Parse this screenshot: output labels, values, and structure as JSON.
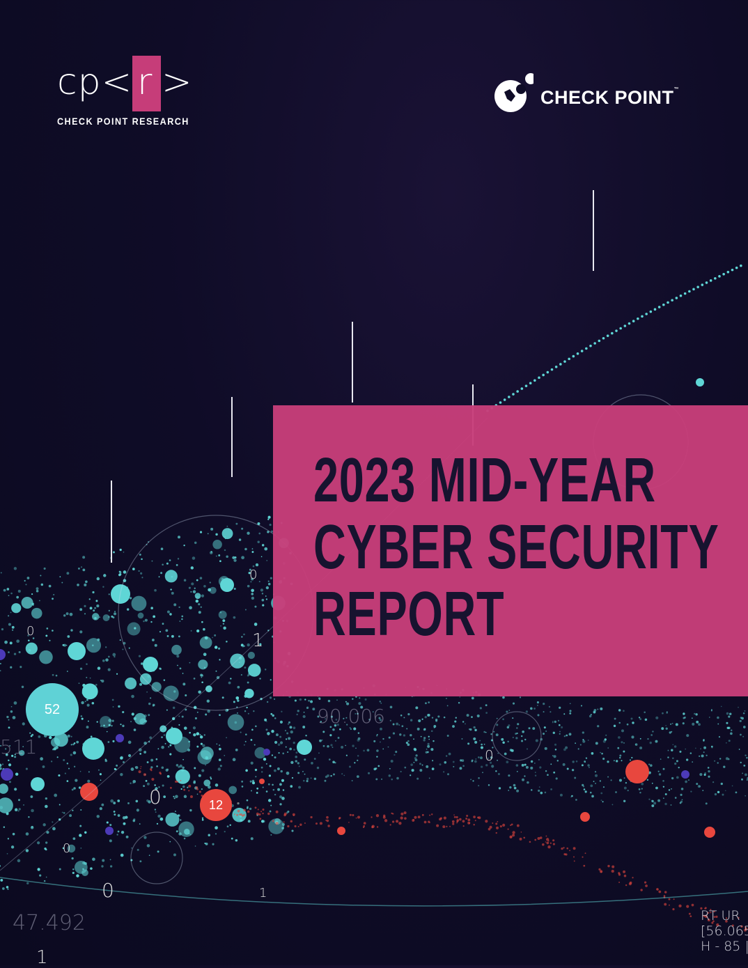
{
  "logos": {
    "cpr": {
      "mark_left": "cp<",
      "mark_box": "r",
      "mark_right": ">",
      "subtitle": "CHECK POINT RESEARCH"
    },
    "checkpoint": {
      "name": "CHECK POINT",
      "trademark": "™"
    }
  },
  "title": {
    "line1": "2023 MID-YEAR",
    "line2": "CYBER SECURITY",
    "line3": "REPORT"
  },
  "decor_numbers": {
    "bubble_cyan": "52",
    "bubble_red": "12",
    "n_90006": "90.006",
    "n_511": "511",
    "n_47492": "47.492",
    "corner_line1": "RT UR",
    "corner_line2": "[56.065",
    "corner_line3": "H - 85 |",
    "zero": "0",
    "one": "1"
  },
  "colors": {
    "accent_pink": "#c63d79",
    "background": "#0f0c27",
    "dot_cyan": "#5fd6d6",
    "dot_red": "#e8473e",
    "title_text": "#17132f"
  }
}
